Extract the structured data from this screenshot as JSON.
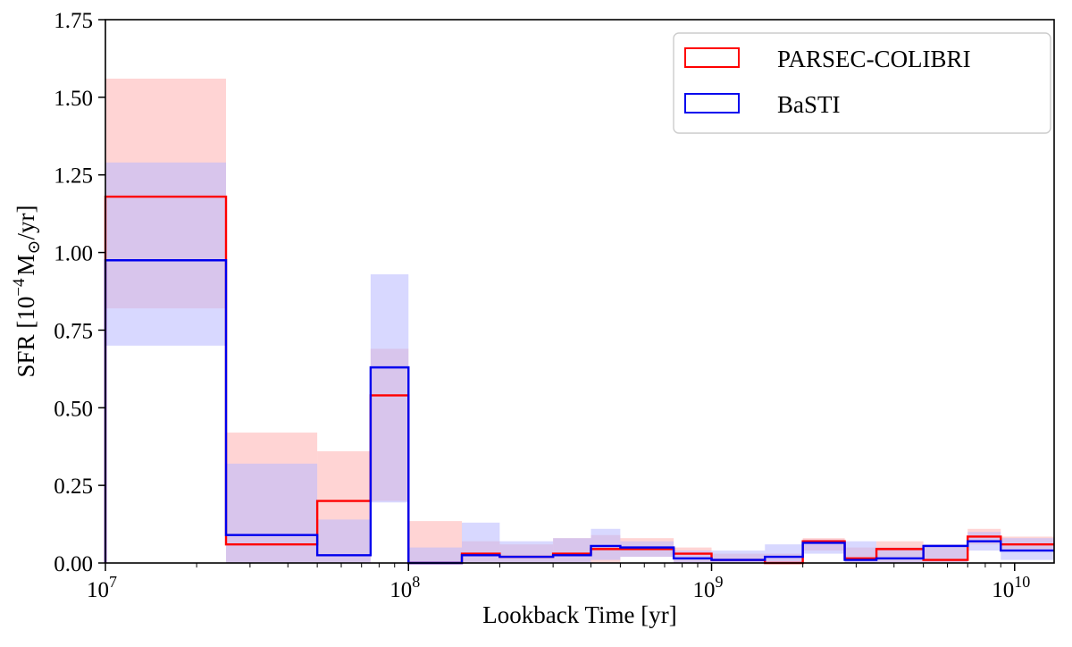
{
  "chart_data": {
    "type": "step",
    "xscale": "log",
    "xlabel": "Lookback Time [yr]",
    "ylabel": {
      "prefix": "SFR [10",
      "exp": "−4",
      "mid": "M",
      "sun": "⊙",
      "suffix": "/yr]"
    },
    "xlim": [
      10000000.0,
      13500000000.0
    ],
    "ylim": [
      0,
      1.75
    ],
    "yticks": [
      0.0,
      0.25,
      0.5,
      0.75,
      1.0,
      1.25,
      1.5,
      1.75
    ],
    "ytick_labels": [
      "0.00",
      "0.25",
      "0.50",
      "0.75",
      "1.00",
      "1.25",
      "1.50",
      "1.75"
    ],
    "xticks": [
      10000000.0,
      100000000.0,
      1000000000.0,
      10000000000.0
    ],
    "xtick_labels": [
      {
        "base": "10",
        "exp": "7"
      },
      {
        "base": "10",
        "exp": "8"
      },
      {
        "base": "10",
        "exp": "9"
      },
      {
        "base": "10",
        "exp": "10"
      }
    ],
    "legend_position": "top-right",
    "series": [
      {
        "name": "PARSEC-COLIBRI",
        "color": "#ff0000",
        "fill": "#ffb0b0",
        "bins": [
          {
            "x0": 10000000.0,
            "x1": 25000000.0,
            "v": 1.18,
            "lo": 0.82,
            "hi": 1.56
          },
          {
            "x0": 25000000.0,
            "x1": 50000000.0,
            "v": 0.06,
            "lo": 0.0,
            "hi": 0.42
          },
          {
            "x0": 50000000.0,
            "x1": 75000000.0,
            "v": 0.2,
            "lo": 0.0,
            "hi": 0.36
          },
          {
            "x0": 75000000.0,
            "x1": 100000000.0,
            "v": 0.54,
            "lo": 0.2,
            "hi": 0.69
          },
          {
            "x0": 100000000.0,
            "x1": 150000000.0,
            "v": 0.0,
            "lo": 0.0,
            "hi": 0.135
          },
          {
            "x0": 150000000.0,
            "x1": 200000000.0,
            "v": 0.03,
            "lo": 0.0,
            "hi": 0.07
          },
          {
            "x0": 200000000.0,
            "x1": 300000000.0,
            "v": 0.02,
            "lo": 0.0,
            "hi": 0.06
          },
          {
            "x0": 300000000.0,
            "x1": 400000000.0,
            "v": 0.03,
            "lo": 0.0,
            "hi": 0.08
          },
          {
            "x0": 400000000.0,
            "x1": 500000000.0,
            "v": 0.045,
            "lo": 0.0,
            "hi": 0.09
          },
          {
            "x0": 500000000.0,
            "x1": 750000000.0,
            "v": 0.045,
            "lo": 0.02,
            "hi": 0.08
          },
          {
            "x0": 750000000.0,
            "x1": 1000000000.0,
            "v": 0.03,
            "lo": 0.0,
            "hi": 0.05
          },
          {
            "x0": 1000000000.0,
            "x1": 1500000000.0,
            "v": 0.01,
            "lo": 0.0,
            "hi": 0.03
          },
          {
            "x0": 1500000000.0,
            "x1": 2000000000.0,
            "v": 0.0,
            "lo": 0.0,
            "hi": 0.03
          },
          {
            "x0": 2000000000.0,
            "x1": 2750000000.0,
            "v": 0.07,
            "lo": 0.04,
            "hi": 0.08
          },
          {
            "x0": 2750000000.0,
            "x1": 3500000000.0,
            "v": 0.015,
            "lo": 0.0,
            "hi": 0.05
          },
          {
            "x0": 3500000000.0,
            "x1": 5000000000.0,
            "v": 0.045,
            "lo": 0.0,
            "hi": 0.07
          },
          {
            "x0": 5000000000.0,
            "x1": 7000000000.0,
            "v": 0.01,
            "lo": 0.0,
            "hi": 0.06
          },
          {
            "x0": 7000000000.0,
            "x1": 9000000000.0,
            "v": 0.085,
            "lo": 0.06,
            "hi": 0.11
          },
          {
            "x0": 9000000000.0,
            "x1": 13500000000.0,
            "v": 0.06,
            "lo": 0.04,
            "hi": 0.085
          }
        ]
      },
      {
        "name": "BaSTI",
        "color": "#0000ee",
        "fill": "#b8b8ff",
        "bins": [
          {
            "x0": 10000000.0,
            "x1": 25000000.0,
            "v": 0.975,
            "lo": 0.7,
            "hi": 1.29
          },
          {
            "x0": 25000000.0,
            "x1": 50000000.0,
            "v": 0.09,
            "lo": 0.0,
            "hi": 0.32
          },
          {
            "x0": 50000000.0,
            "x1": 75000000.0,
            "v": 0.025,
            "lo": 0.0,
            "hi": 0.14
          },
          {
            "x0": 75000000.0,
            "x1": 100000000.0,
            "v": 0.63,
            "lo": 0.195,
            "hi": 0.93
          },
          {
            "x0": 100000000.0,
            "x1": 150000000.0,
            "v": 0.0,
            "lo": 0.0,
            "hi": 0.05
          },
          {
            "x0": 150000000.0,
            "x1": 200000000.0,
            "v": 0.025,
            "lo": 0.0,
            "hi": 0.13
          },
          {
            "x0": 200000000.0,
            "x1": 300000000.0,
            "v": 0.02,
            "lo": 0.0,
            "hi": 0.07
          },
          {
            "x0": 300000000.0,
            "x1": 400000000.0,
            "v": 0.025,
            "lo": 0.0,
            "hi": 0.08
          },
          {
            "x0": 400000000.0,
            "x1": 500000000.0,
            "v": 0.055,
            "lo": 0.01,
            "hi": 0.11
          },
          {
            "x0": 500000000.0,
            "x1": 750000000.0,
            "v": 0.05,
            "lo": 0.02,
            "hi": 0.07
          },
          {
            "x0": 750000000.0,
            "x1": 1000000000.0,
            "v": 0.015,
            "lo": 0.0,
            "hi": 0.04
          },
          {
            "x0": 1000000000.0,
            "x1": 1500000000.0,
            "v": 0.01,
            "lo": 0.0,
            "hi": 0.04
          },
          {
            "x0": 1500000000.0,
            "x1": 2000000000.0,
            "v": 0.02,
            "lo": 0.0,
            "hi": 0.06
          },
          {
            "x0": 2000000000.0,
            "x1": 2750000000.0,
            "v": 0.065,
            "lo": 0.03,
            "hi": 0.075
          },
          {
            "x0": 2750000000.0,
            "x1": 3500000000.0,
            "v": 0.01,
            "lo": 0.0,
            "hi": 0.07
          },
          {
            "x0": 3500000000.0,
            "x1": 5000000000.0,
            "v": 0.015,
            "lo": 0.0,
            "hi": 0.05
          },
          {
            "x0": 5000000000.0,
            "x1": 7000000000.0,
            "v": 0.055,
            "lo": 0.0,
            "hi": 0.06
          },
          {
            "x0": 7000000000.0,
            "x1": 9000000000.0,
            "v": 0.07,
            "lo": 0.04,
            "hi": 0.1
          },
          {
            "x0": 9000000000.0,
            "x1": 13500000000.0,
            "v": 0.04,
            "lo": 0.01,
            "hi": 0.08
          }
        ]
      }
    ]
  }
}
